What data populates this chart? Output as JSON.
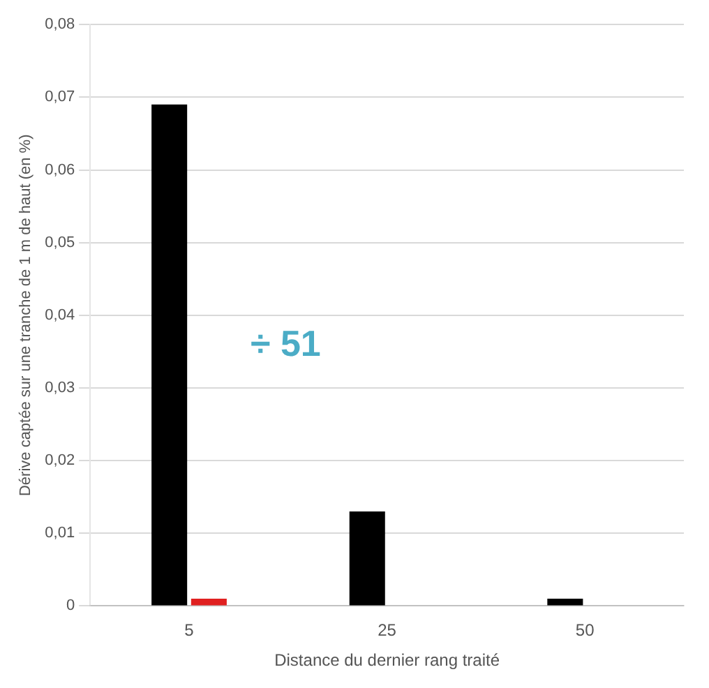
{
  "chart_data": {
    "type": "bar",
    "xlabel": "Distance du dernier rang traité",
    "ylabel": "Dérive captée sur une tranche de 1 m de haut (en %)",
    "categories": [
      "5",
      "25",
      "50"
    ],
    "series": [
      {
        "color": "#000000",
        "values": [
          0.069,
          0.013,
          0.001
        ]
      },
      {
        "color": "#e02020",
        "values": [
          0.001,
          0,
          0
        ]
      }
    ],
    "ylim": [
      0,
      0.08
    ],
    "yticks": [
      {
        "value": 0,
        "label": "0"
      },
      {
        "value": 0.01,
        "label": "0,01"
      },
      {
        "value": 0.02,
        "label": "0,02"
      },
      {
        "value": 0.03,
        "label": "0,03"
      },
      {
        "value": 0.04,
        "label": "0,04"
      },
      {
        "value": 0.05,
        "label": "0,05"
      },
      {
        "value": 0.06,
        "label": "0,06"
      },
      {
        "value": 0.07,
        "label": "0,07"
      },
      {
        "value": 0.08,
        "label": "0,08"
      }
    ],
    "grid": "y",
    "legend": false,
    "annotations": [
      "÷ 51"
    ]
  }
}
